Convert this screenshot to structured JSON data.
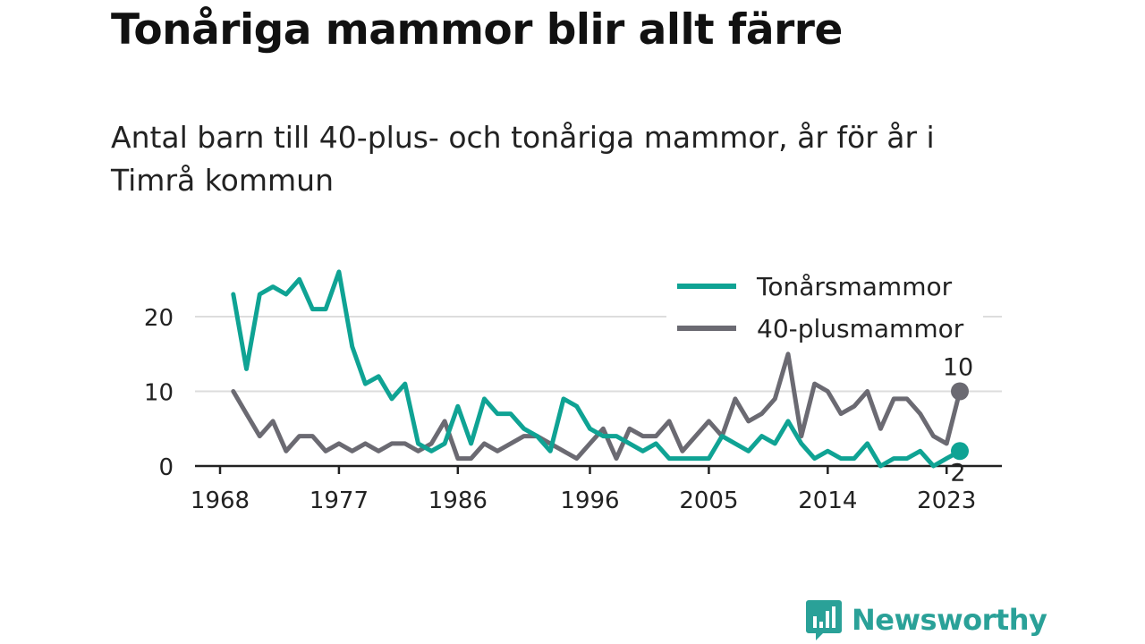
{
  "title": "Tonåriga mammor blir allt färre",
  "subtitle": "Antal barn till 40-plus- och tonåriga mammor, år för år i Timrå kommun",
  "brand": "Newsworthy",
  "colors": {
    "teal": "#0fa394",
    "gray": "#6b6a72",
    "grid": "#dddddd",
    "brand": "#2aa198"
  },
  "chart_data": {
    "type": "line",
    "title": "Tonåriga mammor blir allt färre",
    "xlabel": "",
    "ylabel": "",
    "xlim": [
      1968,
      2024
    ],
    "ylim": [
      0,
      26
    ],
    "x_ticks": [
      1968,
      1977,
      1986,
      1996,
      2005,
      2014,
      2023
    ],
    "y_ticks": [
      0,
      10,
      20
    ],
    "grid": true,
    "legend_position": "top-right",
    "x": [
      1969,
      1970,
      1971,
      1972,
      1973,
      1974,
      1975,
      1976,
      1977,
      1978,
      1979,
      1980,
      1981,
      1982,
      1983,
      1984,
      1985,
      1986,
      1987,
      1988,
      1989,
      1990,
      1991,
      1992,
      1993,
      1994,
      1995,
      1996,
      1997,
      1998,
      1999,
      2000,
      2001,
      2002,
      2003,
      2004,
      2005,
      2006,
      2007,
      2008,
      2009,
      2010,
      2011,
      2012,
      2013,
      2014,
      2015,
      2016,
      2017,
      2018,
      2019,
      2020,
      2021,
      2022,
      2023,
      2024
    ],
    "series": [
      {
        "name": "Tonårsmammor",
        "color": "#0fa394",
        "end_label": "2",
        "values": [
          23,
          13,
          23,
          24,
          23,
          25,
          21,
          21,
          26,
          16,
          11,
          12,
          9,
          11,
          3,
          2,
          3,
          8,
          3,
          9,
          7,
          7,
          5,
          4,
          2,
          9,
          8,
          5,
          4,
          4,
          3,
          2,
          3,
          1,
          1,
          1,
          1,
          4,
          3,
          2,
          4,
          3,
          6,
          3,
          1,
          2,
          1,
          1,
          3,
          0,
          1,
          1,
          2,
          0,
          1,
          2
        ]
      },
      {
        "name": "40-plusmammor",
        "color": "#6b6a72",
        "end_label": "10",
        "values": [
          10,
          7,
          4,
          6,
          2,
          4,
          4,
          2,
          3,
          2,
          3,
          2,
          3,
          3,
          2,
          3,
          6,
          1,
          1,
          3,
          2,
          3,
          4,
          4,
          3,
          2,
          1,
          3,
          5,
          1,
          5,
          4,
          4,
          6,
          2,
          4,
          6,
          4,
          9,
          6,
          7,
          9,
          15,
          4,
          11,
          10,
          7,
          8,
          10,
          5,
          9,
          9,
          7,
          4,
          3,
          10
        ]
      }
    ]
  }
}
